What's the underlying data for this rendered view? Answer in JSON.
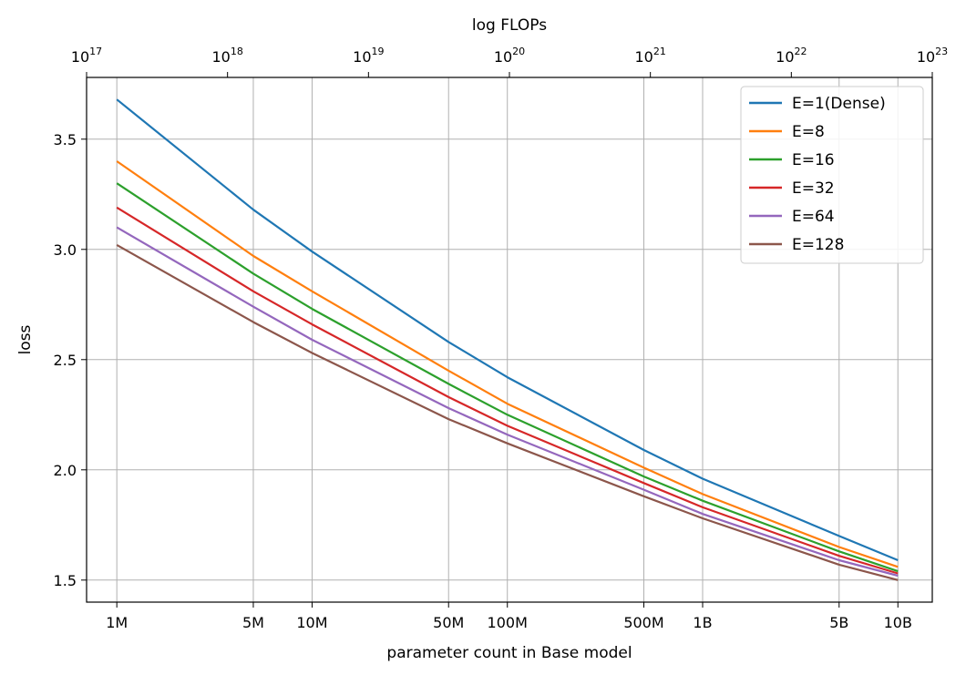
{
  "chart_data": {
    "type": "line",
    "title": "",
    "xlabel": "parameter count in Base model",
    "ylabel": "loss",
    "secondary_xlabel": "log FLOPs",
    "x_scale": "log",
    "x": [
      1000000,
      5000000,
      10000000,
      50000000,
      100000000,
      500000000,
      1000000000,
      5000000000,
      10000000000
    ],
    "x_tick_labels": [
      "1M",
      "5M",
      "10M",
      "50M",
      "100M",
      "500M",
      "1B",
      "5B",
      "10B"
    ],
    "xlim": [
      700000,
      15000000000
    ],
    "ylim": [
      1.4,
      3.78
    ],
    "y_ticks": [
      1.5,
      2.0,
      2.5,
      3.0,
      3.5
    ],
    "y_tick_labels": [
      "1.5",
      "2.0",
      "2.5",
      "3.0",
      "3.5"
    ],
    "secondary_x_scale": "log",
    "secondary_xlim": [
      1e+17,
      1e+23
    ],
    "secondary_x_ticks": [
      1e+17,
      1e+18,
      1e+19,
      1e+20,
      1e+21,
      1e+22,
      1e+23
    ],
    "secondary_x_tick_labels": [
      {
        "base": "10",
        "exp": "17"
      },
      {
        "base": "10",
        "exp": "18"
      },
      {
        "base": "10",
        "exp": "19"
      },
      {
        "base": "10",
        "exp": "20"
      },
      {
        "base": "10",
        "exp": "21"
      },
      {
        "base": "10",
        "exp": "22"
      },
      {
        "base": "10",
        "exp": "23"
      }
    ],
    "grid": true,
    "legend_position": "top-right",
    "series": [
      {
        "name": "E=1(Dense)",
        "color": "#1f77b4",
        "values": [
          3.68,
          3.18,
          2.99,
          2.58,
          2.42,
          2.09,
          1.96,
          1.7,
          1.59
        ]
      },
      {
        "name": "E=8",
        "color": "#ff7f0e",
        "values": [
          3.4,
          2.97,
          2.81,
          2.45,
          2.3,
          2.01,
          1.89,
          1.65,
          1.56
        ]
      },
      {
        "name": "E=16",
        "color": "#2ca02c",
        "values": [
          3.3,
          2.89,
          2.73,
          2.39,
          2.25,
          1.97,
          1.86,
          1.63,
          1.54
        ]
      },
      {
        "name": "E=32",
        "color": "#d62728",
        "values": [
          3.19,
          2.81,
          2.66,
          2.33,
          2.2,
          1.94,
          1.83,
          1.61,
          1.53
        ]
      },
      {
        "name": "E=64",
        "color": "#9467bd",
        "values": [
          3.1,
          2.74,
          2.59,
          2.28,
          2.16,
          1.91,
          1.8,
          1.59,
          1.52
        ]
      },
      {
        "name": "E=128",
        "color": "#8c564b",
        "values": [
          3.02,
          2.67,
          2.53,
          2.23,
          2.12,
          1.88,
          1.78,
          1.57,
          1.5
        ]
      }
    ]
  }
}
